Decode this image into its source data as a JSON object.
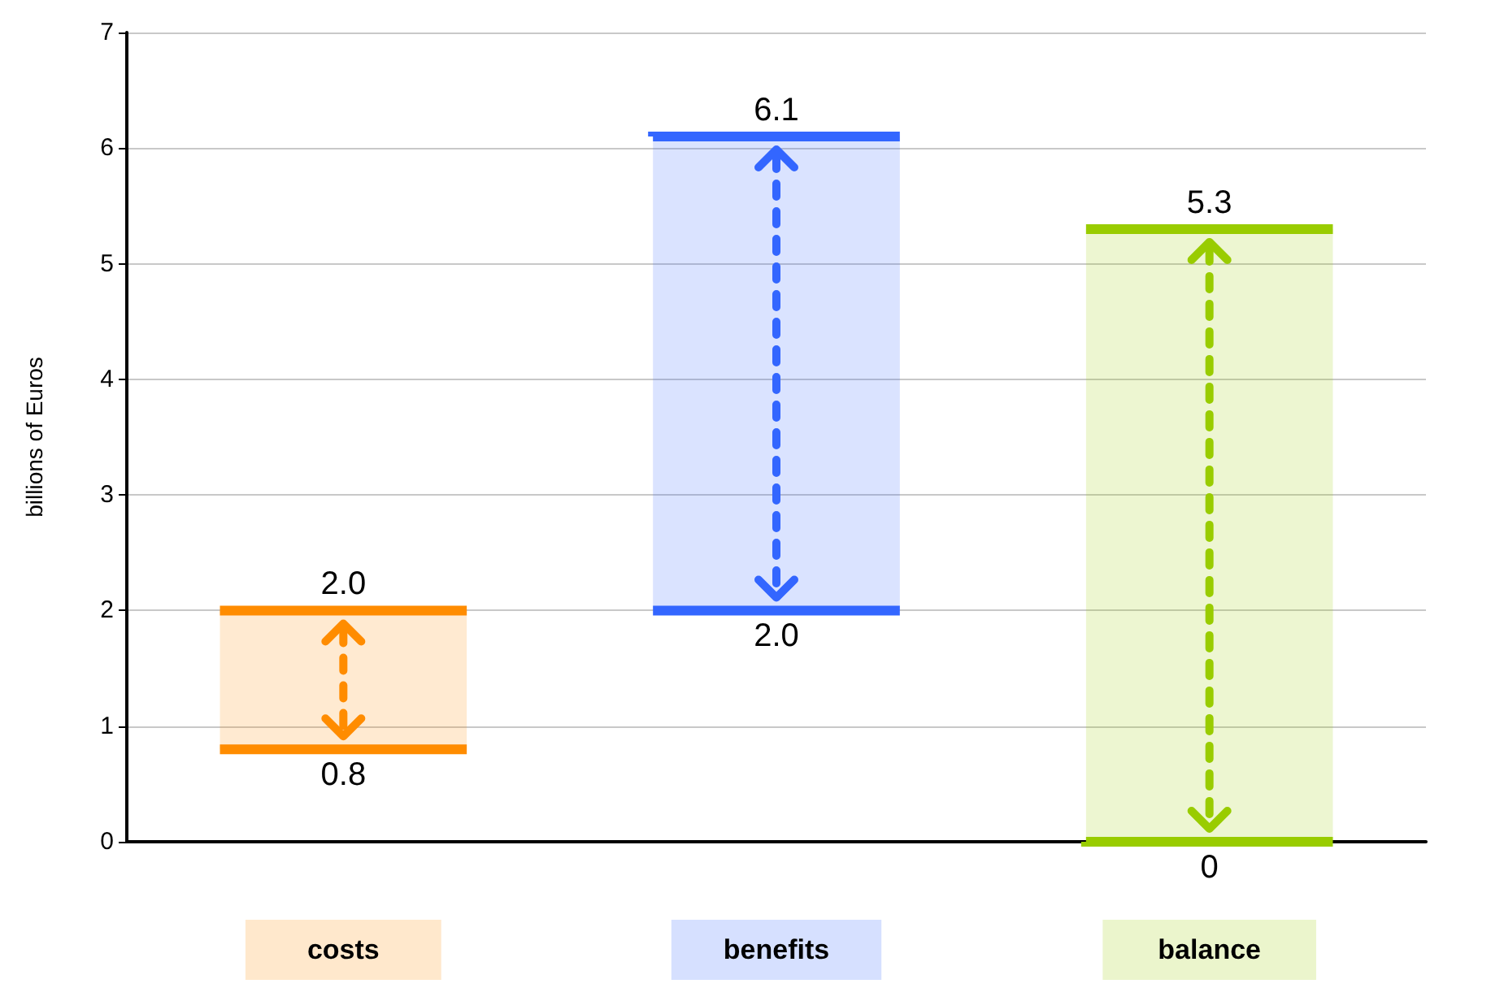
{
  "chart_data": {
    "type": "bar",
    "categories": [
      "costs",
      "benefits",
      "balance"
    ],
    "values": [
      1.2,
      4.1,
      5.3
    ],
    "base": [
      0.8,
      2.0,
      0
    ],
    "colors": [
      "#ff8c00",
      "#3366ff",
      "#99cc00"
    ],
    "ylabel": "billions of Euros",
    "ylim": [
      0,
      7
    ],
    "yticks": [
      0,
      1,
      2,
      3,
      4,
      5,
      6,
      7
    ],
    "grid": "y",
    "annotations": [
      {
        "text": "2.0",
        "x": "costs",
        "y": 2.0
      },
      {
        "text": "0.8",
        "x": "costs",
        "y": 0.8
      },
      {
        "text": "6.1",
        "x": "benefits",
        "y": 6.1
      },
      {
        "text": "2.0",
        "x": "benefits",
        "y": 2.0
      },
      {
        "text": "5.3",
        "x": "balance",
        "y": 5.3
      },
      {
        "text": "0",
        "x": "balance",
        "y": 0
      }
    ]
  }
}
